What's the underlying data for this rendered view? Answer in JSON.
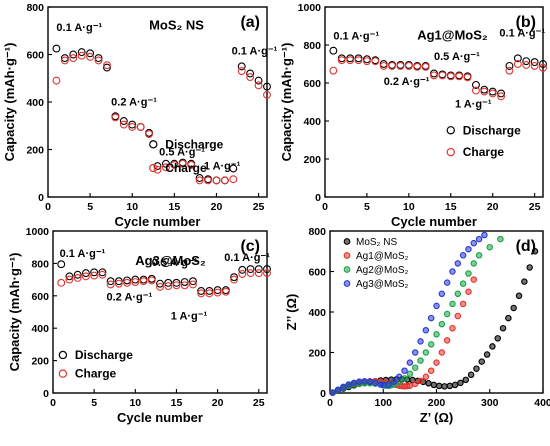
{
  "chart_data": [
    {
      "panel": "(a)",
      "type": "scatter",
      "title": "MoS₂ NS",
      "xlabel": "Cycle number",
      "ylabel": "Capacity (mAh·g⁻¹)",
      "xlim": [
        0,
        26
      ],
      "ylim": [
        0,
        800
      ],
      "xticks": [
        0,
        5,
        10,
        15,
        20,
        25
      ],
      "yticks": [
        0,
        200,
        400,
        600,
        800
      ],
      "legend": "bottom-center",
      "series": [
        {
          "name": "Discharge",
          "marker": "open-circle",
          "color": "#000000",
          "x": [
            1,
            2,
            3,
            4,
            5,
            6,
            7,
            8,
            9,
            10,
            11,
            12,
            13,
            14,
            15,
            16,
            17,
            18,
            19,
            20,
            21,
            22,
            23,
            24,
            25,
            26
          ],
          "y": [
            625,
            585,
            600,
            610,
            605,
            585,
            545,
            340,
            320,
            305,
            295,
            270,
            130,
            140,
            140,
            145,
            140,
            80,
            75,
            70,
            70,
            120,
            550,
            520,
            490,
            465
          ]
        },
        {
          "name": "Charge",
          "marker": "open-circle",
          "color": "#e3342f",
          "x": [
            1,
            2,
            3,
            4,
            5,
            6,
            7,
            8,
            9,
            10,
            11,
            12,
            13,
            14,
            15,
            16,
            17,
            18,
            19,
            20,
            21,
            22,
            23,
            24,
            25,
            26
          ],
          "y": [
            490,
            575,
            585,
            595,
            590,
            575,
            555,
            335,
            305,
            295,
            295,
            265,
            115,
            125,
            135,
            140,
            135,
            70,
            70,
            70,
            70,
            75,
            530,
            505,
            470,
            430
          ]
        }
      ],
      "annotations": [
        "0.1 A·g⁻¹",
        "0.2 A·g⁻¹",
        "0.5 A·g⁻¹",
        "1 A·g⁻¹",
        "0.1 A·g⁻¹"
      ]
    },
    {
      "panel": "(b)",
      "type": "scatter",
      "title": "Ag1@MoS₂",
      "xlabel": "Cycle number",
      "ylabel": "Capacity (mAh·g⁻¹)",
      "xlim": [
        0,
        26
      ],
      "ylim": [
        0,
        1000
      ],
      "xticks": [
        0,
        5,
        10,
        15,
        20,
        25
      ],
      "yticks": [
        0,
        200,
        400,
        600,
        800,
        1000
      ],
      "legend": "center-right",
      "series": [
        {
          "name": "Discharge",
          "marker": "open-circle",
          "color": "#000000",
          "x": [
            1,
            2,
            3,
            4,
            5,
            6,
            7,
            8,
            9,
            10,
            11,
            12,
            13,
            14,
            15,
            16,
            17,
            18,
            19,
            20,
            21,
            22,
            23,
            24,
            25,
            26
          ],
          "y": [
            770,
            730,
            730,
            730,
            725,
            720,
            700,
            695,
            695,
            695,
            690,
            690,
            650,
            645,
            640,
            640,
            635,
            590,
            565,
            555,
            545,
            690,
            730,
            715,
            710,
            700
          ]
        },
        {
          "name": "Charge",
          "marker": "open-circle",
          "color": "#e3342f",
          "x": [
            1,
            2,
            3,
            4,
            5,
            6,
            7,
            8,
            9,
            10,
            11,
            12,
            13,
            14,
            15,
            16,
            17,
            18,
            19,
            20,
            21,
            22,
            23,
            24,
            25,
            26
          ],
          "y": [
            665,
            720,
            720,
            720,
            715,
            715,
            690,
            690,
            690,
            690,
            685,
            685,
            640,
            640,
            635,
            635,
            630,
            560,
            555,
            545,
            530,
            665,
            700,
            695,
            690,
            680
          ]
        }
      ],
      "annotations": [
        "0.1 A·g⁻¹",
        "0.2 A·g⁻¹",
        "0.5 A·g⁻¹",
        "1 A·g⁻¹",
        "0.1 A·g⁻¹"
      ]
    },
    {
      "panel": "(c)",
      "type": "scatter",
      "title": "Ag3@MoS₂",
      "xlabel": "Cycle number",
      "ylabel": "Capacity (mAh·g⁻¹)",
      "xlim": [
        0,
        26
      ],
      "ylim": [
        0,
        1000
      ],
      "xticks": [
        0,
        5,
        10,
        15,
        20,
        25
      ],
      "yticks": [
        0,
        200,
        400,
        600,
        800,
        1000
      ],
      "legend": "bottom-left",
      "series": [
        {
          "name": "Discharge",
          "marker": "open-circle",
          "color": "#000000",
          "x": [
            1,
            2,
            3,
            4,
            5,
            6,
            7,
            8,
            9,
            10,
            11,
            12,
            13,
            14,
            15,
            16,
            17,
            18,
            19,
            20,
            21,
            22,
            23,
            24,
            25,
            26
          ],
          "y": [
            795,
            720,
            730,
            740,
            745,
            745,
            690,
            690,
            695,
            700,
            700,
            705,
            675,
            680,
            680,
            685,
            690,
            630,
            630,
            635,
            635,
            715,
            760,
            765,
            765,
            765
          ]
        },
        {
          "name": "Charge",
          "marker": "open-circle",
          "color": "#e3342f",
          "x": [
            1,
            2,
            3,
            4,
            5,
            6,
            7,
            8,
            9,
            10,
            11,
            12,
            13,
            14,
            15,
            16,
            17,
            18,
            19,
            20,
            21,
            22,
            23,
            24,
            25,
            26
          ],
          "y": [
            680,
            700,
            710,
            720,
            725,
            730,
            670,
            675,
            680,
            685,
            690,
            695,
            655,
            660,
            665,
            665,
            670,
            615,
            615,
            620,
            625,
            700,
            735,
            740,
            740,
            740
          ]
        }
      ],
      "annotations": [
        "0.1 A·g⁻¹",
        "0.2 A·g⁻¹",
        "0.5 A·g⁻¹",
        "1 A·g⁻¹",
        "0.1 A·g⁻¹"
      ]
    },
    {
      "panel": "(d)",
      "type": "scatter",
      "title": "",
      "xlabel": "Z’ (Ω)",
      "ylabel": "Z’’ (Ω)",
      "xlim": [
        0,
        400
      ],
      "ylim": [
        0,
        800
      ],
      "xticks": [
        0,
        100,
        200,
        300,
        400
      ],
      "yticks": [
        0,
        200,
        400,
        600,
        800
      ],
      "legend": "top-left",
      "series": [
        {
          "name": "MoS₂ NS",
          "marker": "open-circle",
          "color": "#000000",
          "x": [
            5,
            15,
            25,
            35,
            45,
            55,
            65,
            75,
            85,
            95,
            105,
            115,
            125,
            135,
            145,
            155,
            165,
            175,
            185,
            195,
            205,
            215,
            225,
            235,
            245,
            255,
            265,
            275,
            285,
            295,
            305,
            315,
            325,
            335,
            345,
            355,
            365,
            375,
            385
          ],
          "y": [
            2,
            12,
            22,
            30,
            38,
            45,
            50,
            54,
            58,
            62,
            64,
            66,
            67,
            67,
            66,
            64,
            60,
            55,
            48,
            40,
            35,
            33,
            35,
            40,
            50,
            65,
            90,
            120,
            155,
            190,
            230,
            270,
            320,
            370,
            420,
            480,
            550,
            620,
            700
          ]
        },
        {
          "name": "Ag1@MoS₂",
          "marker": "open-circle",
          "color": "#e3342f",
          "x": [
            5,
            15,
            25,
            35,
            45,
            55,
            65,
            75,
            85,
            95,
            105,
            115,
            125,
            130,
            135,
            140,
            145,
            150,
            160,
            170,
            180,
            190,
            200,
            210,
            220,
            230,
            240,
            250,
            260,
            270
          ],
          "y": [
            2,
            15,
            28,
            38,
            46,
            52,
            56,
            58,
            58,
            56,
            52,
            46,
            40,
            36,
            34,
            33,
            34,
            36,
            45,
            60,
            80,
            110,
            150,
            200,
            260,
            320,
            380,
            440,
            500,
            560
          ]
        },
        {
          "name": "Ag2@MoS₂",
          "marker": "open-circle",
          "color": "#1ba34a",
          "x": [
            5,
            15,
            25,
            35,
            45,
            55,
            65,
            75,
            85,
            95,
            100,
            105,
            110,
            115,
            120,
            130,
            140,
            150,
            160,
            170,
            180,
            190,
            200,
            210,
            220,
            230,
            240,
            250,
            260,
            270,
            280,
            300,
            320
          ],
          "y": [
            2,
            14,
            26,
            35,
            42,
            46,
            48,
            48,
            46,
            42,
            38,
            36,
            36,
            38,
            42,
            55,
            72,
            95,
            125,
            160,
            200,
            240,
            290,
            340,
            390,
            440,
            490,
            540,
            590,
            640,
            680,
            720,
            760
          ]
        },
        {
          "name": "Ag3@MoS₂",
          "marker": "open-circle",
          "color": "#2a3bd6",
          "x": [
            5,
            15,
            25,
            35,
            45,
            55,
            65,
            75,
            85,
            95,
            100,
            110,
            120,
            130,
            140,
            150,
            160,
            170,
            180,
            190,
            200,
            210,
            220,
            230,
            240,
            250,
            260,
            270,
            280,
            290
          ],
          "y": [
            2,
            16,
            30,
            42,
            50,
            56,
            58,
            56,
            50,
            42,
            38,
            40,
            55,
            80,
            110,
            150,
            200,
            255,
            310,
            370,
            430,
            490,
            545,
            600,
            640,
            680,
            710,
            740,
            760,
            780
          ]
        }
      ]
    }
  ]
}
